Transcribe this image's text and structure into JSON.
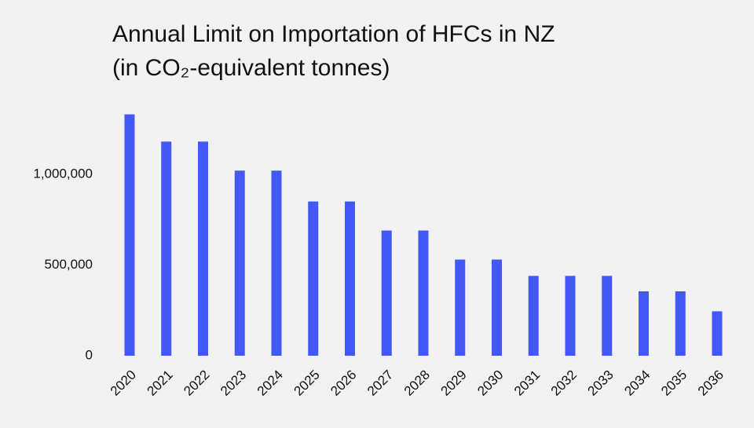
{
  "chart_data": {
    "type": "bar",
    "title": [
      "Annual Limit on Importation of HFCs in NZ",
      "(in CO₂-equivalent tonnes)"
    ],
    "categories": [
      "2020",
      "2021",
      "2022",
      "2023",
      "2024",
      "2025",
      "2026",
      "2027",
      "2028",
      "2029",
      "2030",
      "2031",
      "2032",
      "2033",
      "2034",
      "2035",
      "2036"
    ],
    "values": [
      1330000,
      1180000,
      1180000,
      1020000,
      1020000,
      850000,
      850000,
      690000,
      690000,
      530000,
      530000,
      440000,
      440000,
      440000,
      355000,
      355000,
      245000
    ],
    "color": "#4458f8",
    "ylim": [
      0,
      1350000
    ],
    "yticks": [
      0,
      {
        "value": 500000,
        "label": "500,000"
      },
      {
        "value": 1000000,
        "label": "1,000,000"
      }
    ],
    "grid": false
  }
}
